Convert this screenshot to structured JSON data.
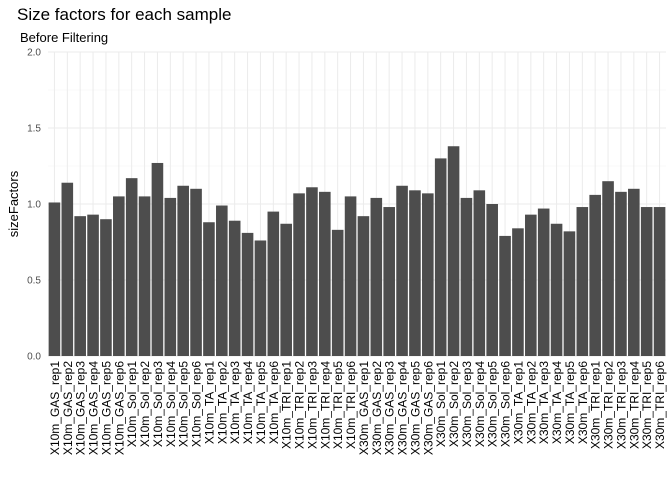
{
  "chart_data": {
    "type": "bar",
    "title": "Size factors for each sample",
    "subtitle": "Before Filtering",
    "xlabel": "",
    "ylabel": "sizeFactors",
    "ylim": [
      0,
      2.0
    ],
    "yticks": [
      "0.0",
      "0.5",
      "1.0",
      "1.5",
      "2.0"
    ],
    "grid": true,
    "bar_color": "#4d4d4d",
    "categories": [
      "X10m_GAS_rep1",
      "X10m_GAS_rep2",
      "X10m_GAS_rep3",
      "X10m_GAS_rep4",
      "X10m_GAS_rep5",
      "X10m_GAS_rep6",
      "X10m_Sol_rep1",
      "X10m_Sol_rep2",
      "X10m_Sol_rep3",
      "X10m_Sol_rep4",
      "X10m_Sol_rep5",
      "X10m_Sol_rep6",
      "X10m_TA_rep1",
      "X10m_TA_rep2",
      "X10m_TA_rep3",
      "X10m_TA_rep4",
      "X10m_TA_rep5",
      "X10m_TA_rep6",
      "X10m_TRI_rep1",
      "X10m_TRI_rep2",
      "X10m_TRI_rep3",
      "X10m_TRI_rep4",
      "X10m_TRI_rep5",
      "X10m_TRI_rep6",
      "X30m_GAS_rep1",
      "X30m_GAS_rep2",
      "X30m_GAS_rep3",
      "X30m_GAS_rep4",
      "X30m_GAS_rep5",
      "X30m_GAS_rep6",
      "X30m_Sol_rep1",
      "X30m_Sol_rep2",
      "X30m_Sol_rep3",
      "X30m_Sol_rep4",
      "X30m_Sol_rep5",
      "X30m_Sol_rep6",
      "X30m_TA_rep1",
      "X30m_TA_rep2",
      "X30m_TA_rep3",
      "X30m_TA_rep4",
      "X30m_TA_rep5",
      "X30m_TA_rep6",
      "X30m_TRI_rep1",
      "X30m_TRI_rep2",
      "X30m_TRI_rep3",
      "X30m_TRI_rep4",
      "X30m_TRI_rep5",
      "X30m_TRI_rep6"
    ],
    "values": [
      1.01,
      1.14,
      0.92,
      0.93,
      0.9,
      1.05,
      1.17,
      1.05,
      1.27,
      1.04,
      1.12,
      1.1,
      0.88,
      0.99,
      0.89,
      0.81,
      0.76,
      0.95,
      0.87,
      1.07,
      1.11,
      1.08,
      0.83,
      1.05,
      0.92,
      1.04,
      0.98,
      1.12,
      1.09,
      1.07,
      1.3,
      1.38,
      1.04,
      1.09,
      1.0,
      0.79,
      0.84,
      0.93,
      0.97,
      0.87,
      0.82,
      0.98,
      1.06,
      1.15,
      1.08,
      1.1,
      0.98,
      0.98
    ]
  }
}
